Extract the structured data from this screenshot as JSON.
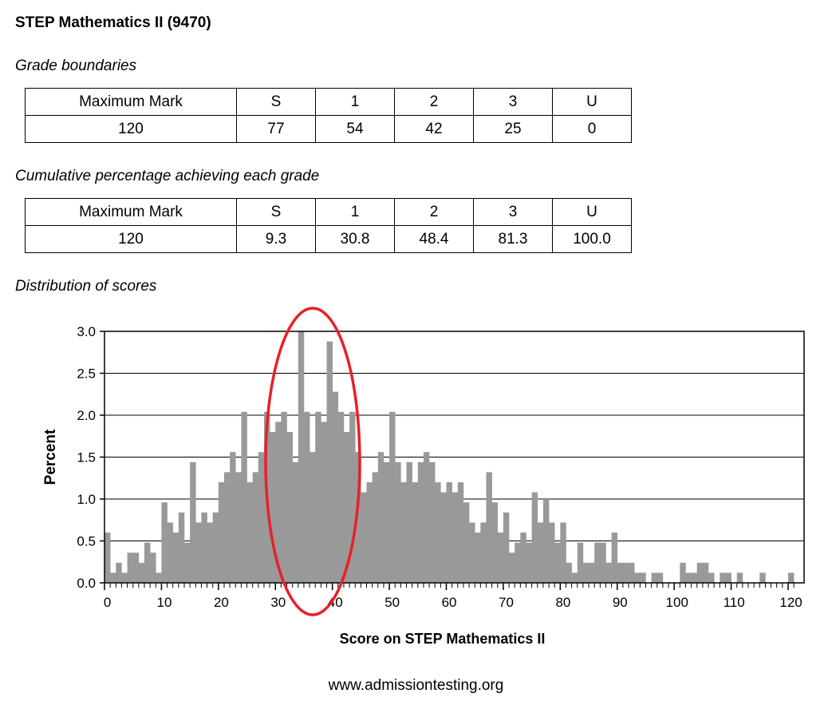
{
  "title": "STEP Mathematics II (9470)",
  "boundaries": {
    "heading": "Grade boundaries",
    "headers": [
      "Maximum Mark",
      "S",
      "1",
      "2",
      "3",
      "U"
    ],
    "row": [
      "120",
      "77",
      "54",
      "42",
      "25",
      "0"
    ]
  },
  "cumulative": {
    "heading": "Cumulative percentage achieving each grade",
    "headers": [
      "Maximum Mark",
      "S",
      "1",
      "2",
      "3",
      "U"
    ],
    "row": [
      "120",
      "9.3",
      "30.8",
      "48.4",
      "81.3",
      "100.0"
    ]
  },
  "distribution_heading": "Distribution of scores",
  "footer": "www.admissiontesting.org",
  "colors": {
    "bar": "#999999",
    "annotation": "#e8202a",
    "grid": "#000000"
  },
  "chart_data": {
    "type": "bar",
    "title": "",
    "xlabel": "Score on STEP Mathematics II",
    "ylabel": "Percent",
    "xlim": [
      0,
      121
    ],
    "ylim": [
      0,
      3.0
    ],
    "yticks": [
      0.0,
      0.5,
      1.0,
      1.5,
      2.0,
      2.5,
      3.0
    ],
    "ytick_labels": [
      "0.0",
      "0.5",
      "1.0",
      "1.5",
      "2.0",
      "2.5",
      "3.0"
    ],
    "xticks": [
      0,
      10,
      20,
      30,
      40,
      50,
      60,
      70,
      80,
      90,
      100,
      110,
      120
    ],
    "xtick_labels": [
      "0",
      "10",
      "20",
      "30",
      "40",
      "50",
      "60",
      "70",
      "80",
      "90",
      "100",
      "110",
      "120"
    ],
    "grid": "horizontal",
    "x": [
      0,
      1,
      2,
      3,
      4,
      5,
      6,
      7,
      8,
      9,
      10,
      11,
      12,
      13,
      14,
      15,
      16,
      17,
      18,
      19,
      20,
      21,
      22,
      23,
      24,
      25,
      26,
      27,
      28,
      29,
      30,
      31,
      32,
      33,
      34,
      35,
      36,
      37,
      38,
      39,
      40,
      41,
      42,
      43,
      44,
      45,
      46,
      47,
      48,
      49,
      50,
      51,
      52,
      53,
      54,
      55,
      56,
      57,
      58,
      59,
      60,
      61,
      62,
      63,
      64,
      65,
      66,
      67,
      68,
      69,
      70,
      71,
      72,
      73,
      74,
      75,
      76,
      77,
      78,
      79,
      80,
      81,
      82,
      83,
      84,
      85,
      86,
      87,
      88,
      89,
      90,
      91,
      92,
      93,
      94,
      95,
      96,
      97,
      98,
      99,
      100,
      101,
      102,
      103,
      104,
      105,
      106,
      107,
      108,
      109,
      110,
      111,
      112,
      113,
      114,
      115,
      116,
      117,
      118,
      119,
      120
    ],
    "values": [
      0.6,
      0.12,
      0.24,
      0.12,
      0.36,
      0.36,
      0.24,
      0.48,
      0.36,
      0.12,
      0.96,
      0.72,
      0.6,
      0.84,
      0.48,
      1.44,
      0.72,
      0.84,
      0.72,
      0.84,
      1.2,
      1.32,
      1.56,
      1.32,
      2.04,
      1.2,
      1.32,
      1.56,
      2.04,
      1.8,
      1.92,
      2.04,
      1.8,
      1.44,
      3.0,
      2.04,
      1.56,
      2.04,
      1.92,
      2.88,
      2.28,
      2.04,
      1.8,
      2.04,
      1.56,
      1.08,
      1.2,
      1.32,
      1.56,
      1.44,
      2.04,
      1.44,
      1.2,
      1.44,
      1.2,
      1.44,
      1.56,
      1.44,
      1.2,
      1.08,
      1.2,
      1.08,
      1.2,
      0.96,
      0.72,
      0.6,
      0.72,
      1.32,
      0.96,
      0.6,
      0.84,
      0.36,
      0.48,
      0.6,
      0.48,
      1.08,
      0.72,
      1.0,
      0.72,
      0.48,
      0.72,
      0.24,
      0.12,
      0.48,
      0.24,
      0.24,
      0.48,
      0.48,
      0.24,
      0.6,
      0.24,
      0.24,
      0.24,
      0.12,
      0.12,
      0.0,
      0.12,
      0.12,
      0.0,
      0.0,
      0.0,
      0.24,
      0.12,
      0.12,
      0.24,
      0.24,
      0.12,
      0.0,
      0.12,
      0.12,
      0.0,
      0.12,
      0.0,
      0.0,
      0.0,
      0.12,
      0.0,
      0.0,
      0.0,
      0.0,
      0.12
    ]
  }
}
